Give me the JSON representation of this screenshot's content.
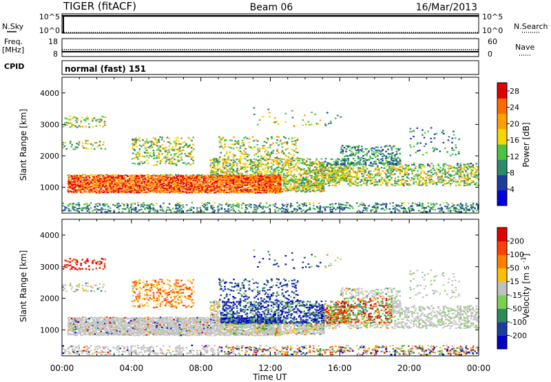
{
  "header": {
    "station": "TIGER (fitACF)",
    "beam": "Beam 06",
    "date": "16/Mar/2013"
  },
  "strips": {
    "nsky": {
      "label": "N.Sky",
      "ticks": [
        "10^5",
        "10^0"
      ]
    },
    "nsearch": {
      "label": "N.Search",
      "ticks": [
        "10^5",
        "10^0"
      ]
    },
    "freq": {
      "label_line1": "Freq.",
      "label_line2": "[MHz]",
      "ticks": [
        "18",
        "8"
      ]
    },
    "nave": {
      "label": "Nave",
      "ticks": [
        "60",
        "0"
      ]
    },
    "cpid": {
      "label": "CPID",
      "value": "normal (fast) 151"
    }
  },
  "chart_data": [
    {
      "type": "heatmap",
      "ylabel": "Slant Range [km]",
      "ylim": [
        180,
        4500
      ],
      "yticks": [
        "1000",
        "2000",
        "3000",
        "4000"
      ],
      "x_range": [
        "00:00",
        "24:00"
      ],
      "colorbar": {
        "label": "Power [dB]",
        "range": [
          0,
          30
        ],
        "ticks": [
          "28",
          "24",
          "20",
          "16",
          "12",
          "8",
          "4"
        ],
        "colors": [
          "#0000e0",
          "#1e3ca0",
          "#2c8a6a",
          "#4cc440",
          "#f4d800",
          "#ffa000",
          "#ff6a00",
          "#e00000"
        ]
      }
    },
    {
      "type": "heatmap",
      "ylabel": "Slant Range [km]",
      "ylim": [
        180,
        4500
      ],
      "yticks": [
        "1000",
        "2000",
        "3000",
        "4000"
      ],
      "x_range": [
        "00:00",
        "24:00"
      ],
      "colorbar": {
        "label": "Velocity [m s^-1]",
        "ticks": [
          "200",
          "100",
          "50",
          "15",
          "-15",
          "-50",
          "-100",
          "-200"
        ],
        "colors": [
          "#0000c8",
          "#1e3ca0",
          "#2e8a5a",
          "#7cd050",
          "#c0c0c0",
          "#ffc000",
          "#ff8000",
          "#ff4000",
          "#e00000"
        ]
      }
    }
  ],
  "x_axis": {
    "label": "Time UT",
    "ticks": [
      "00:00",
      "04:00",
      "08:00",
      "12:00",
      "16:00",
      "20:00",
      "00:00"
    ]
  }
}
